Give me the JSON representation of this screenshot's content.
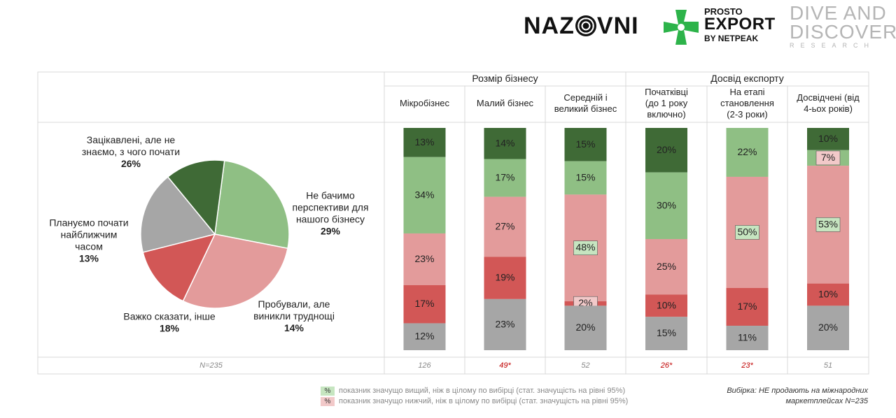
{
  "logos": {
    "nazovni_left": "NAZ",
    "nazovni_right": "VNI",
    "prosto_export": [
      "PROSTO",
      "EXPORT",
      "BY NETPEAK"
    ],
    "dive_and_discovery": [
      "DIVE AND",
      "DISCOVERY",
      "RESEARCH"
    ]
  },
  "header": {
    "group1": "Розмір бізнесу",
    "group2": "Досвід експорту",
    "columns": [
      "Мікробізнес",
      "Малий бізнес",
      "Середній і\nвеликий бізнес",
      "Початківці\n(до 1 року\nвключно)",
      "На етапі\nстановлення\n(2-3 роки)",
      "Досвідчені (від\n4-ьох років)"
    ]
  },
  "chart_data": [
    {
      "type": "pie",
      "slices": [
        {
          "label": "Зацікавлені, але не\nзнаємо, з чого почати",
          "value": 26,
          "value_label": "26%",
          "color": "#8fbf84"
        },
        {
          "label": "Не бачимо\nперспективи для\nнашого бізнесу",
          "value": 29,
          "value_label": "29%",
          "color": "#e39b9b"
        },
        {
          "label": "Пробували, але\nвиникли труднощі",
          "value": 14,
          "value_label": "14%",
          "color": "#d25756"
        },
        {
          "label": "Важко сказати, інше",
          "value": 18,
          "value_label": "18%",
          "color": "#a6a6a6"
        },
        {
          "label": "Плануємо почати\nнайближчим\nчасом",
          "value": 13,
          "value_label": "13%",
          "color": "#3f6a36"
        }
      ]
    },
    {
      "type": "bar",
      "stacked": true,
      "categories": [
        "Мікробізнес",
        "Малий бізнес",
        "Середній і великий бізнес",
        "Початківці (до 1 року включно)",
        "На етапі становлення (2-3 роки)",
        "Досвідчені (від 4-ьох років)"
      ],
      "series": [
        {
          "color": "#3f6a36",
          "values": [
            13,
            14,
            15,
            20,
            0,
            10
          ]
        },
        {
          "color": "#8fbf84",
          "values": [
            34,
            17,
            15,
            30,
            22,
            7
          ]
        },
        {
          "color": "#e39b9b",
          "values": [
            23,
            27,
            48,
            25,
            50,
            53
          ]
        },
        {
          "color": "#d25756",
          "values": [
            17,
            19,
            2,
            10,
            17,
            10
          ]
        },
        {
          "color": "#a6a6a6",
          "values": [
            12,
            23,
            20,
            15,
            11,
            20
          ]
        }
      ],
      "labels": [
        [
          "13%",
          "34%",
          "23%",
          "17%",
          "12%"
        ],
        [
          "14%",
          "17%",
          "27%",
          "19%",
          "23%"
        ],
        [
          "15%",
          "15%",
          "48%",
          "2%",
          "20%"
        ],
        [
          "20%",
          "30%",
          "25%",
          "10%",
          "15%"
        ],
        [
          "",
          "22%",
          "50%",
          "17%",
          "11%"
        ],
        [
          "10%",
          "7%",
          "53%",
          "10%",
          "20%"
        ]
      ],
      "highlights": [
        {
          "col": 2,
          "seg": 2,
          "kind": "higher"
        },
        {
          "col": 2,
          "seg": 3,
          "kind": "lower"
        },
        {
          "col": 4,
          "seg": 2,
          "kind": "higher"
        },
        {
          "col": 5,
          "seg": 1,
          "kind": "lower"
        },
        {
          "col": 5,
          "seg": 2,
          "kind": "higher"
        }
      ]
    }
  ],
  "sample": {
    "total": "N=235",
    "columns": [
      "126",
      "49*",
      "52",
      "26*",
      "23*",
      "51"
    ],
    "flagged": [
      false,
      true,
      false,
      true,
      true,
      false
    ],
    "flag_color": "#c00000"
  },
  "legend": {
    "symbol": "%",
    "higher_text": "показник значущо вищий, ніж в цілому по вибірці (стат. значущість на рівні 95%)",
    "lower_text": "показник значущо нижчий, ніж в цілому по вибірці (стат. значущість на рівні 95%)",
    "higher_color": "#c6e5c0",
    "lower_color": "#f2c9c9"
  },
  "note": {
    "line1": "Вибірка: НЕ продають на міжнародних",
    "line2": "маркетплейсах N=235"
  },
  "colors": {
    "dark_green": "#3f6a36",
    "light_green": "#8fbf84",
    "light_red": "#e39b9b",
    "red": "#d25756",
    "gray": "#a6a6a6",
    "grid": "#d9d9d9",
    "brand_green": "#2db34a"
  }
}
